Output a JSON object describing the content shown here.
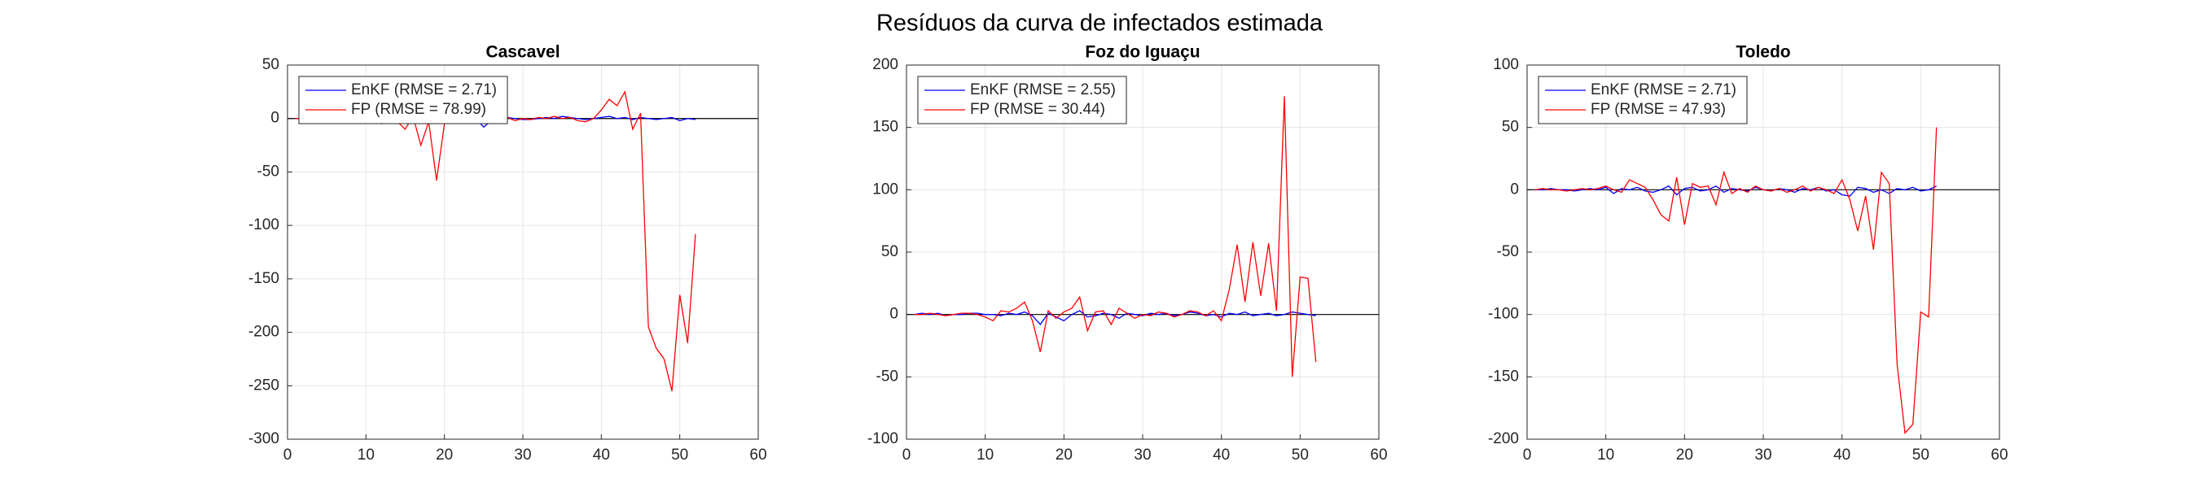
{
  "title": "Resíduos da curva de infectados estimada",
  "chart_data": [
    {
      "type": "line",
      "title": "Cascavel",
      "x": [
        1,
        2,
        3,
        4,
        5,
        6,
        7,
        8,
        9,
        10,
        11,
        12,
        13,
        14,
        15,
        16,
        17,
        18,
        19,
        20,
        21,
        22,
        23,
        24,
        25,
        26,
        27,
        28,
        29,
        30,
        31,
        32,
        33,
        34,
        35,
        36,
        37,
        38,
        39,
        40,
        41,
        42,
        43,
        44,
        45,
        46,
        47,
        48,
        49,
        50,
        51,
        52
      ],
      "series": [
        {
          "name": "EnKF (RMSE = 2.71)",
          "color": "#0000ff",
          "values": [
            0,
            0,
            0,
            0,
            0,
            0,
            0,
            0,
            0,
            0,
            0,
            -1,
            0,
            1,
            -1,
            0,
            -2,
            1,
            -1,
            0,
            0,
            1,
            -1,
            0,
            -8,
            -2,
            0,
            1,
            0,
            -1,
            -1,
            0,
            1,
            0,
            2,
            1,
            0,
            -1,
            0,
            1,
            2,
            0,
            1,
            -1,
            1,
            0,
            -1,
            0,
            1,
            -2,
            0,
            -1
          ]
        },
        {
          "name": "FP (RMSE = 78.99)",
          "color": "#ff0000",
          "values": [
            0,
            0,
            0,
            0,
            0,
            0,
            0,
            0,
            0,
            0,
            -2,
            -5,
            0,
            -3,
            -10,
            2,
            -25,
            -3,
            -58,
            -5,
            2,
            0,
            -2,
            0,
            -1,
            2,
            -1,
            1,
            -2,
            0,
            -1,
            1,
            0,
            2,
            0,
            1,
            -2,
            -3,
            0,
            8,
            18,
            12,
            25,
            -10,
            5,
            -195,
            -215,
            -225,
            -255,
            -165,
            -210,
            -108
          ]
        }
      ],
      "xlim": [
        0,
        60
      ],
      "xticks": [
        0,
        10,
        20,
        30,
        40,
        50,
        60
      ],
      "ylim": [
        -300,
        50
      ],
      "yticks": [
        -300,
        -250,
        -200,
        -150,
        -100,
        -50,
        0,
        50
      ],
      "grid": true,
      "legend": "upper left",
      "zero_line": true
    },
    {
      "type": "line",
      "title": "Foz do Iguaçu",
      "x": [
        1,
        2,
        3,
        4,
        5,
        6,
        7,
        8,
        9,
        10,
        11,
        12,
        13,
        14,
        15,
        16,
        17,
        18,
        19,
        20,
        21,
        22,
        23,
        24,
        25,
        26,
        27,
        28,
        29,
        30,
        31,
        32,
        33,
        34,
        35,
        36,
        37,
        38,
        39,
        40,
        41,
        42,
        43,
        44,
        45,
        46,
        47,
        48,
        49,
        50,
        51,
        52
      ],
      "series": [
        {
          "name": "EnKF (RMSE = 2.55)",
          "color": "#0000ff",
          "values": [
            0,
            1,
            0,
            1,
            -1,
            0,
            0,
            1,
            1,
            0,
            0,
            -1,
            1,
            0,
            2,
            -1,
            -8,
            1,
            -2,
            -5,
            0,
            3,
            -2,
            -1,
            1,
            0,
            -3,
            1,
            0,
            -1,
            1,
            0,
            1,
            -1,
            0,
            2,
            1,
            -1,
            0,
            -2,
            1,
            0,
            2,
            -1,
            0,
            1,
            -1,
            0,
            2,
            1,
            0,
            -1
          ]
        },
        {
          "name": "FP (RMSE = 30.44)",
          "color": "#ff0000",
          "values": [
            0,
            0,
            1,
            0,
            -1,
            0,
            1,
            1,
            0,
            -2,
            -5,
            3,
            2,
            5,
            10,
            -5,
            -30,
            3,
            -3,
            2,
            5,
            14,
            -13,
            2,
            3,
            -8,
            5,
            1,
            -3,
            0,
            -1,
            2,
            1,
            -2,
            0,
            3,
            2,
            -1,
            3,
            -5,
            20,
            56,
            10,
            58,
            15,
            57,
            3,
            175,
            -50,
            30,
            29,
            -38
          ]
        }
      ],
      "xlim": [
        0,
        60
      ],
      "xticks": [
        0,
        10,
        20,
        30,
        40,
        50,
        60
      ],
      "ylim": [
        -100,
        200
      ],
      "yticks": [
        -100,
        -50,
        0,
        50,
        100,
        150,
        200
      ],
      "grid": true,
      "legend": "upper left",
      "zero_line": true
    },
    {
      "type": "line",
      "title": "Toledo",
      "x": [
        1,
        2,
        3,
        4,
        5,
        6,
        7,
        8,
        9,
        10,
        11,
        12,
        13,
        14,
        15,
        16,
        17,
        18,
        19,
        20,
        21,
        22,
        23,
        24,
        25,
        26,
        27,
        28,
        29,
        30,
        31,
        32,
        33,
        34,
        35,
        36,
        37,
        38,
        39,
        40,
        41,
        42,
        43,
        44,
        45,
        46,
        47,
        48,
        49,
        50,
        51,
        52
      ],
      "series": [
        {
          "name": "EnKF (RMSE = 2.71)",
          "color": "#0000ff",
          "values": [
            0,
            0,
            1,
            0,
            0,
            -1,
            0,
            1,
            0,
            2,
            -3,
            1,
            0,
            2,
            -1,
            -2,
            0,
            3,
            -4,
            1,
            2,
            -1,
            0,
            3,
            -2,
            1,
            0,
            -1,
            2,
            0,
            -1,
            1,
            0,
            -2,
            1,
            0,
            2,
            -1,
            0,
            -4,
            -5,
            2,
            1,
            -2,
            0,
            -3,
            1,
            0,
            2,
            -1,
            0,
            3
          ]
        },
        {
          "name": "FP (RMSE = 47.93)",
          "color": "#ff0000",
          "values": [
            0,
            1,
            0,
            0,
            -1,
            0,
            1,
            0,
            1,
            3,
            0,
            -2,
            8,
            5,
            2,
            -8,
            -20,
            -25,
            10,
            -28,
            5,
            2,
            3,
            -12,
            14,
            -3,
            1,
            -2,
            3,
            0,
            -1,
            1,
            -2,
            0,
            3,
            -1,
            2,
            0,
            -3,
            8,
            -8,
            -33,
            -5,
            -48,
            14,
            5,
            -140,
            -195,
            -188,
            -98,
            -102,
            50
          ]
        }
      ],
      "xlim": [
        0,
        60
      ],
      "xticks": [
        0,
        10,
        20,
        30,
        40,
        50,
        60
      ],
      "ylim": [
        -200,
        100
      ],
      "yticks": [
        -200,
        -150,
        -100,
        -50,
        0,
        50,
        100
      ],
      "grid": true,
      "legend": "upper left",
      "zero_line": true
    }
  ]
}
